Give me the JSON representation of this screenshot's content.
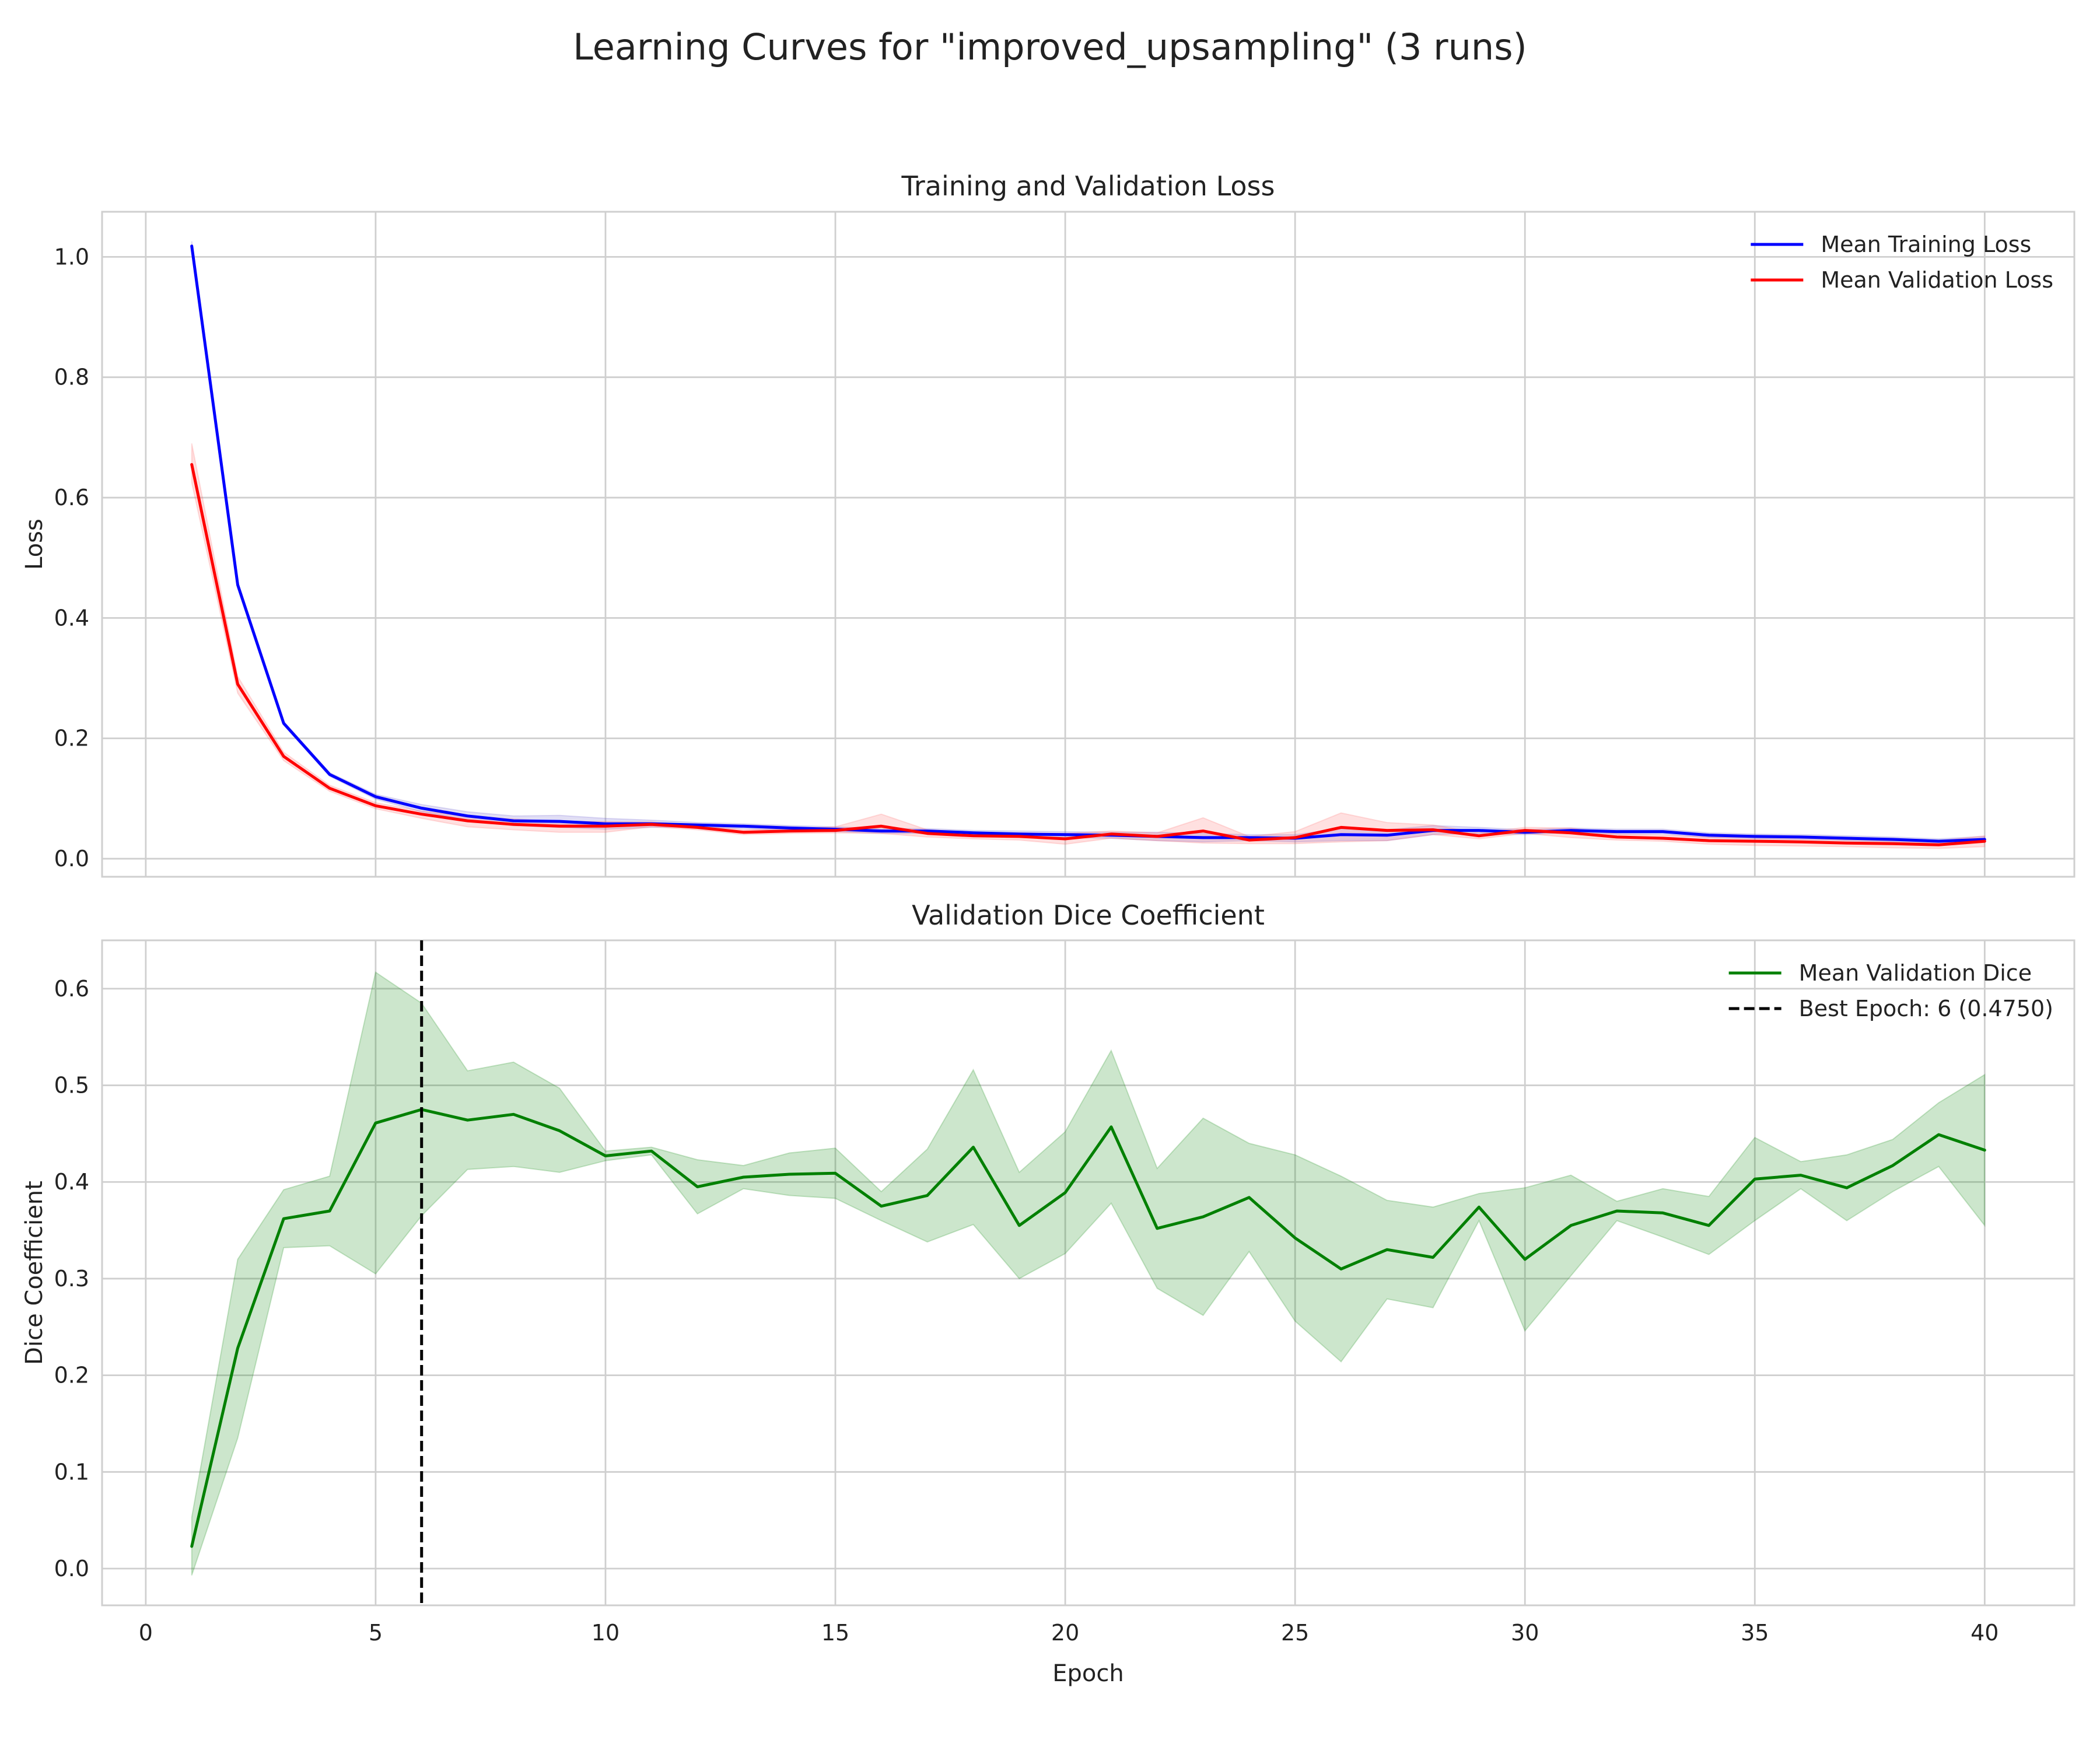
{
  "chart_data": {
    "type": "line",
    "title": "Learning Curves for \"improved_upsampling\" (3 runs)",
    "subplots": [
      {
        "title": "Training and Validation Loss",
        "ylabel": "Loss",
        "xlabel": "",
        "xlim": [
          -0.95,
          41.95
        ],
        "ylim": [
          -0.03,
          1.075
        ],
        "xticks": [
          0,
          5,
          10,
          15,
          20,
          25,
          30,
          35,
          40
        ],
        "yticks": [
          0.0,
          0.2,
          0.4,
          0.6,
          0.8,
          1.0
        ],
        "ytick_labels": [
          "0.0",
          "0.2",
          "0.4",
          "0.6",
          "0.8",
          "1.0"
        ],
        "show_x_tick_labels": false,
        "grid": true,
        "legend_position": "top-right",
        "x": [
          1,
          2,
          3,
          4,
          5,
          6,
          7,
          8,
          9,
          10,
          11,
          12,
          13,
          14,
          15,
          16,
          17,
          18,
          19,
          20,
          21,
          22,
          23,
          24,
          25,
          26,
          27,
          28,
          29,
          30,
          31,
          32,
          33,
          34,
          35,
          36,
          37,
          38,
          39,
          40
        ],
        "series": [
          {
            "name": "Mean Training Loss",
            "color": "#0000ff",
            "band_color": "#6a5acd",
            "values": [
              1.018,
              0.455,
              0.225,
              0.14,
              0.103,
              0.084,
              0.071,
              0.063,
              0.062,
              0.058,
              0.058,
              0.056,
              0.054,
              0.051,
              0.049,
              0.046,
              0.046,
              0.043,
              0.041,
              0.04,
              0.039,
              0.037,
              0.035,
              0.035,
              0.034,
              0.04,
              0.039,
              0.047,
              0.047,
              0.044,
              0.047,
              0.045,
              0.045,
              0.039,
              0.037,
              0.036,
              0.034,
              0.032,
              0.029,
              0.032
            ],
            "band_low": [
              1.01,
              0.45,
              0.222,
              0.137,
              0.099,
              0.078,
              0.064,
              0.055,
              0.052,
              0.049,
              0.052,
              0.052,
              0.05,
              0.047,
              0.045,
              0.042,
              0.042,
              0.039,
              0.036,
              0.035,
              0.034,
              0.03,
              0.028,
              0.03,
              0.028,
              0.03,
              0.03,
              0.04,
              0.042,
              0.04,
              0.043,
              0.041,
              0.041,
              0.035,
              0.033,
              0.032,
              0.03,
              0.028,
              0.025,
              0.027
            ],
            "band_high": [
              1.026,
              0.46,
              0.228,
              0.143,
              0.107,
              0.09,
              0.078,
              0.071,
              0.072,
              0.067,
              0.064,
              0.06,
              0.058,
              0.055,
              0.053,
              0.05,
              0.05,
              0.047,
              0.046,
              0.045,
              0.044,
              0.044,
              0.042,
              0.04,
              0.04,
              0.05,
              0.048,
              0.055,
              0.052,
              0.048,
              0.051,
              0.049,
              0.049,
              0.043,
              0.041,
              0.04,
              0.038,
              0.036,
              0.033,
              0.037
            ]
          },
          {
            "name": "Mean Validation Loss",
            "color": "#ff0000",
            "band_color": "#ff6666",
            "values": [
              0.655,
              0.29,
              0.17,
              0.117,
              0.088,
              0.074,
              0.063,
              0.057,
              0.054,
              0.054,
              0.057,
              0.052,
              0.044,
              0.046,
              0.047,
              0.054,
              0.042,
              0.038,
              0.037,
              0.033,
              0.041,
              0.037,
              0.046,
              0.031,
              0.035,
              0.052,
              0.047,
              0.048,
              0.038,
              0.047,
              0.043,
              0.036,
              0.034,
              0.03,
              0.029,
              0.028,
              0.026,
              0.025,
              0.023,
              0.029
            ],
            "band_low": [
              0.625,
              0.275,
              0.163,
              0.112,
              0.083,
              0.067,
              0.053,
              0.048,
              0.044,
              0.044,
              0.053,
              0.048,
              0.04,
              0.042,
              0.043,
              0.042,
              0.036,
              0.033,
              0.031,
              0.024,
              0.034,
              0.03,
              0.026,
              0.025,
              0.025,
              0.028,
              0.03,
              0.04,
              0.033,
              0.042,
              0.035,
              0.031,
              0.029,
              0.024,
              0.022,
              0.021,
              0.02,
              0.018,
              0.017,
              0.02
            ],
            "band_high": [
              0.69,
              0.303,
              0.177,
              0.122,
              0.093,
              0.079,
              0.071,
              0.066,
              0.062,
              0.062,
              0.061,
              0.056,
              0.048,
              0.05,
              0.053,
              0.074,
              0.048,
              0.043,
              0.043,
              0.042,
              0.046,
              0.043,
              0.068,
              0.037,
              0.045,
              0.076,
              0.06,
              0.056,
              0.043,
              0.052,
              0.051,
              0.041,
              0.039,
              0.036,
              0.036,
              0.035,
              0.032,
              0.032,
              0.03,
              0.038
            ]
          }
        ]
      },
      {
        "title": "Validation Dice Coefficient",
        "ylabel": "Dice Coefficient",
        "xlabel": "Epoch",
        "xlim": [
          -0.95,
          41.95
        ],
        "ylim": [
          -0.038,
          0.65
        ],
        "xticks": [
          0,
          5,
          10,
          15,
          20,
          25,
          30,
          35,
          40
        ],
        "yticks": [
          0.0,
          0.1,
          0.2,
          0.3,
          0.4,
          0.5,
          0.6
        ],
        "ytick_labels": [
          "0.0",
          "0.1",
          "0.2",
          "0.3",
          "0.4",
          "0.5",
          "0.6"
        ],
        "show_x_tick_labels": true,
        "grid": true,
        "legend_position": "top-right",
        "x": [
          1,
          2,
          3,
          4,
          5,
          6,
          7,
          8,
          9,
          10,
          11,
          12,
          13,
          14,
          15,
          16,
          17,
          18,
          19,
          20,
          21,
          22,
          23,
          24,
          25,
          26,
          27,
          28,
          29,
          30,
          31,
          32,
          33,
          34,
          35,
          36,
          37,
          38,
          39,
          40
        ],
        "series": [
          {
            "name": "Mean Validation Dice",
            "color": "#008000",
            "band_color": "#008000",
            "values": [
              0.023,
              0.228,
              0.362,
              0.37,
              0.461,
              0.475,
              0.464,
              0.47,
              0.453,
              0.427,
              0.432,
              0.395,
              0.405,
              0.408,
              0.409,
              0.375,
              0.386,
              0.436,
              0.355,
              0.389,
              0.457,
              0.352,
              0.364,
              0.384,
              0.342,
              0.31,
              0.33,
              0.322,
              0.374,
              0.32,
              0.355,
              0.37,
              0.368,
              0.355,
              0.403,
              0.407,
              0.394,
              0.417,
              0.449,
              0.433
            ],
            "band_low": [
              -0.007,
              0.135,
              0.332,
              0.334,
              0.305,
              0.365,
              0.413,
              0.416,
              0.41,
              0.422,
              0.428,
              0.367,
              0.393,
              0.386,
              0.383,
              0.36,
              0.338,
              0.356,
              0.3,
              0.326,
              0.378,
              0.29,
              0.262,
              0.328,
              0.256,
              0.214,
              0.279,
              0.27,
              0.36,
              0.246,
              0.303,
              0.36,
              0.343,
              0.325,
              0.36,
              0.393,
              0.36,
              0.39,
              0.416,
              0.355
            ],
            "band_high": [
              0.053,
              0.32,
              0.392,
              0.406,
              0.617,
              0.585,
              0.515,
              0.524,
              0.497,
              0.432,
              0.436,
              0.423,
              0.417,
              0.43,
              0.435,
              0.39,
              0.434,
              0.516,
              0.41,
              0.452,
              0.536,
              0.414,
              0.466,
              0.44,
              0.428,
              0.406,
              0.381,
              0.374,
              0.388,
              0.394,
              0.407,
              0.38,
              0.393,
              0.385,
              0.446,
              0.421,
              0.428,
              0.444,
              0.482,
              0.511
            ]
          }
        ],
        "best_epoch": {
          "name": "Best Epoch: 6 (0.4750)",
          "epoch": 6,
          "value": 0.475,
          "color": "#000000",
          "style": "dashed"
        }
      }
    ]
  }
}
